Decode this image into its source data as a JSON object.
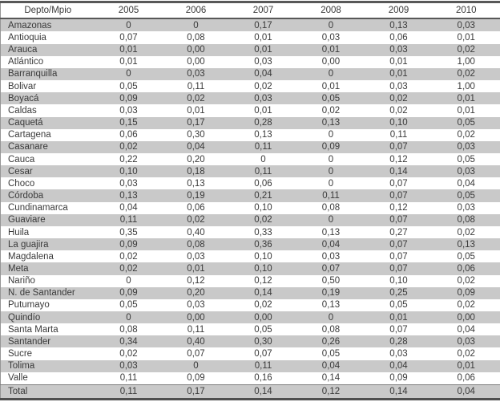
{
  "chart_data": {
    "type": "table",
    "title": "",
    "columns": [
      "Depto/Mpio",
      "2005",
      "2006",
      "2007",
      "2008",
      "2009",
      "2010"
    ],
    "rows": [
      {
        "label": "Amazonas",
        "values": [
          "0",
          "0",
          "0,17",
          "0",
          "0,13",
          "0,03"
        ]
      },
      {
        "label": "Antioquia",
        "values": [
          "0,07",
          "0,08",
          "0,01",
          "0,03",
          "0,06",
          "0,01"
        ]
      },
      {
        "label": "Arauca",
        "values": [
          "0,01",
          "0,00",
          "0,01",
          "0,01",
          "0,03",
          "0,02"
        ]
      },
      {
        "label": "Atlántico",
        "values": [
          "0,01",
          "0,00",
          "0,03",
          "0,00",
          "0,01",
          "1,00"
        ]
      },
      {
        "label": "Barranquilla",
        "values": [
          "0",
          "0,03",
          "0,04",
          "0",
          "0,01",
          "0,02"
        ]
      },
      {
        "label": "Bolivar",
        "values": [
          "0,05",
          "0,11",
          "0,02",
          "0,01",
          "0,03",
          "1,00"
        ]
      },
      {
        "label": "Boyacá",
        "values": [
          "0,09",
          "0,02",
          "0,03",
          "0,05",
          "0,02",
          "0,01"
        ]
      },
      {
        "label": "Caldas",
        "values": [
          "0,03",
          "0,01",
          "0,01",
          "0,02",
          "0,02",
          "0,01"
        ]
      },
      {
        "label": "Caquetá",
        "values": [
          "0,15",
          "0,17",
          "0,28",
          "0,13",
          "0,10",
          "0,05"
        ]
      },
      {
        "label": "Cartagena",
        "values": [
          "0,06",
          "0,30",
          "0,13",
          "0",
          "0,11",
          "0,02"
        ]
      },
      {
        "label": "Casanare",
        "values": [
          "0,02",
          "0,04",
          "0,11",
          "0,09",
          "0,07",
          "0,03"
        ]
      },
      {
        "label": "Cauca",
        "values": [
          "0,22",
          "0,20",
          "0",
          "0",
          "0,12",
          "0,05"
        ]
      },
      {
        "label": "Cesar",
        "values": [
          "0,10",
          "0,18",
          "0,11",
          "0",
          "0,14",
          "0,03"
        ]
      },
      {
        "label": "Choco",
        "values": [
          "0,03",
          "0,13",
          "0,06",
          "0",
          "0,07",
          "0,04"
        ]
      },
      {
        "label": "Córdoba",
        "values": [
          "0,13",
          "0,19",
          "0,21",
          "0,11",
          "0,07",
          "0,05"
        ]
      },
      {
        "label": "Cundinamarca",
        "values": [
          "0,04",
          "0,06",
          "0,10",
          "0,08",
          "0,12",
          "0,03"
        ]
      },
      {
        "label": "Guaviare",
        "values": [
          "0,11",
          "0,02",
          "0,02",
          "0",
          "0,07",
          "0,08"
        ]
      },
      {
        "label": "Huila",
        "values": [
          "0,35",
          "0,40",
          "0,33",
          "0,13",
          "0,27",
          "0,02"
        ]
      },
      {
        "label": "La guajira",
        "values": [
          "0,09",
          "0,08",
          "0,36",
          "0,04",
          "0,07",
          "0,13"
        ]
      },
      {
        "label": "Magdalena",
        "values": [
          "0,02",
          "0,03",
          "0,10",
          "0,03",
          "0,07",
          "0,05"
        ]
      },
      {
        "label": "Meta",
        "values": [
          "0,02",
          "0,01",
          "0,10",
          "0,07",
          "0,07",
          "0,06"
        ]
      },
      {
        "label": "Nariño",
        "values": [
          "0",
          "0,12",
          "0,12",
          "0,50",
          "0,10",
          "0,02"
        ]
      },
      {
        "label": "N. de Santander",
        "values": [
          "0,09",
          "0,20",
          "0,14",
          "0,19",
          "0,25",
          "0,09"
        ]
      },
      {
        "label": "Putumayo",
        "values": [
          "0,05",
          "0,03",
          "0,02",
          "0,13",
          "0,05",
          "0,02"
        ]
      },
      {
        "label": "Quindío",
        "values": [
          "0",
          "0,00",
          "0,00",
          "0",
          "0,01",
          "0,00"
        ]
      },
      {
        "label": "Santa Marta",
        "values": [
          "0,08",
          "0,11",
          "0,05",
          "0,08",
          "0,07",
          "0,04"
        ]
      },
      {
        "label": "Santander",
        "values": [
          "0,34",
          "0,40",
          "0,30",
          "0,26",
          "0,28",
          "0,03"
        ]
      },
      {
        "label": "Sucre",
        "values": [
          "0,02",
          "0,07",
          "0,07",
          "0,05",
          "0,03",
          "0,02"
        ]
      },
      {
        "label": "Tolima",
        "values": [
          "0,03",
          "0",
          "0,11",
          "0,04",
          "0,04",
          "0,01"
        ]
      },
      {
        "label": "Valle",
        "values": [
          "0,11",
          "0,09",
          "0,16",
          "0,14",
          "0,09",
          "0,06"
        ]
      },
      {
        "label": "Total",
        "values": [
          "0,11",
          "0,17",
          "0,14",
          "0,12",
          "0,14",
          "0,04"
        ]
      }
    ],
    "layout": {
      "striped": true,
      "stripe_start_row": "Amazonas",
      "decimal_separator": ","
    }
  },
  "colors": {
    "stripe": "#c9c9c9",
    "row_plain": "#ffffff",
    "border_dark": "#585858",
    "border_side": "#969696",
    "text": "#3a3a3a"
  }
}
